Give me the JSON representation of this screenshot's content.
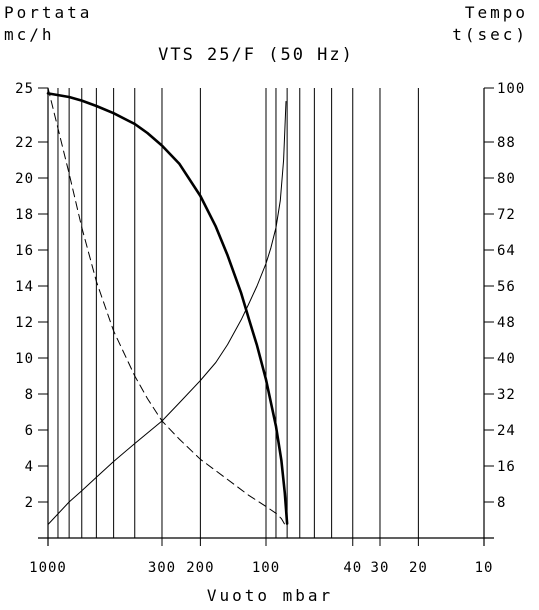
{
  "chart_data": {
    "type": "line",
    "title": "VTS 25/F (50 Hz)",
    "xlabel": "Vuoto mbar",
    "ylabel_left": [
      "Portata",
      "mc/h"
    ],
    "ylabel_right": [
      "Tempo",
      "t(sec)"
    ],
    "x_scale": "log-reversed",
    "xlim": [
      1000,
      10
    ],
    "ylim_left": [
      0,
      25
    ],
    "ylim_right": [
      0,
      100
    ],
    "grid": true,
    "x_ticks": [
      {
        "value": 1000,
        "label": "1000"
      },
      {
        "value": 300,
        "label": "300"
      },
      {
        "value": 200,
        "label": "200"
      },
      {
        "value": 100,
        "label": "100"
      },
      {
        "value": 40,
        "label": "40"
      },
      {
        "value": 30,
        "label": "30"
      },
      {
        "value": 20,
        "label": "20"
      },
      {
        "value": 10,
        "label": "10"
      }
    ],
    "x_gridlines": [
      1000,
      900,
      800,
      700,
      600,
      500,
      400,
      300,
      200,
      100,
      90,
      80,
      70,
      60,
      50,
      40,
      30,
      20,
      10
    ],
    "y_ticks_left": [
      2,
      4,
      6,
      8,
      10,
      12,
      14,
      16,
      18,
      20,
      22,
      25
    ],
    "y_ticks_right": [
      8,
      16,
      24,
      32,
      40,
      48,
      56,
      64,
      72,
      80,
      88,
      100
    ],
    "series": [
      {
        "style": "thick",
        "axis": "left",
        "x": [
          1000,
          800,
          700,
          600,
          500,
          400,
          350,
          300,
          250,
          200,
          170,
          150,
          130,
          120,
          110,
          100,
          90,
          85,
          82,
          80
        ],
        "y": [
          24.7,
          24.5,
          24.3,
          24.0,
          23.6,
          23.0,
          22.5,
          21.8,
          20.8,
          19.0,
          17.3,
          15.7,
          13.6,
          12.2,
          10.7,
          8.8,
          6.2,
          4.3,
          2.5,
          0.8
        ]
      },
      {
        "style": "thin",
        "axis": "right",
        "x": [
          1000,
          800,
          700,
          600,
          500,
          400,
          300,
          250,
          200,
          170,
          150,
          130,
          120,
          110,
          100,
          95,
          90,
          86,
          83,
          81
        ],
        "y": [
          3,
          8,
          10.5,
          13.5,
          17,
          21,
          26,
          30,
          35,
          39,
          43,
          48.5,
          52,
          56,
          61,
          64.5,
          69,
          75,
          84,
          97
        ]
      },
      {
        "style": "dashed",
        "axis": "right",
        "x": [
          1000,
          900,
          800,
          700,
          600,
          500,
          400,
          350,
          300,
          250,
          200,
          150,
          120,
          100,
          90,
          85,
          82
        ],
        "y": [
          100,
          91,
          81,
          69,
          57,
          46,
          36,
          31,
          26,
          22,
          17.5,
          13,
          9.5,
          7,
          5.5,
          4.3,
          3
        ]
      }
    ]
  }
}
